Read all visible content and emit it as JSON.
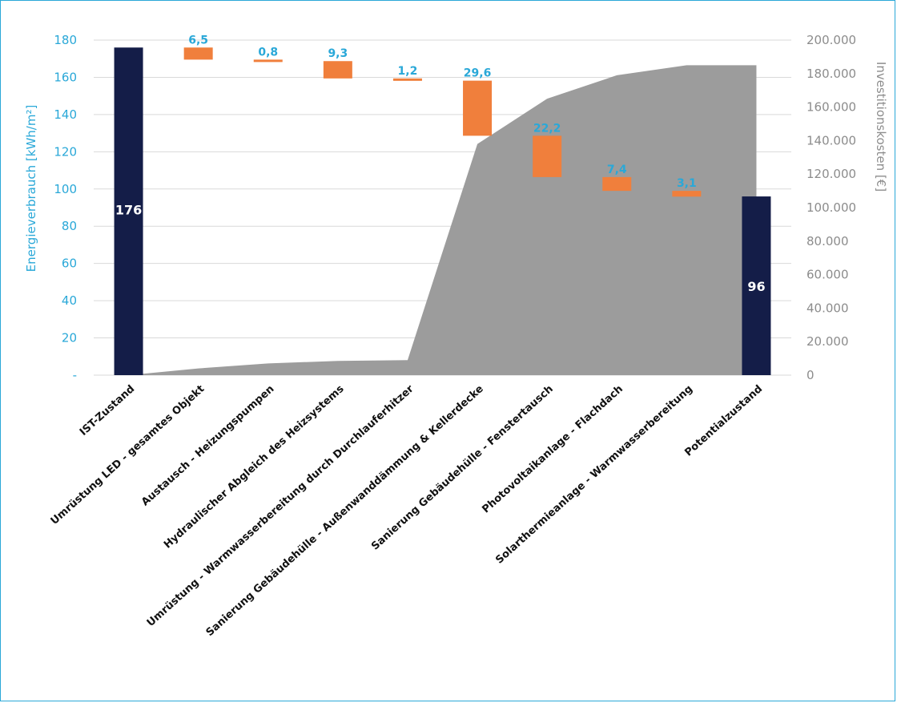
{
  "chart_data": {
    "type": "waterfall",
    "y_left_label": "Energieverbrauch [kWh/m²]",
    "y_right_label": "Investitionskosten [€]",
    "ylim_left": [
      0,
      180
    ],
    "ylim_right": [
      0,
      200000
    ],
    "y_left_ticks": [
      "-",
      "20",
      "40",
      "60",
      "80",
      "100",
      "120",
      "140",
      "160",
      "180"
    ],
    "y_right_ticks": [
      "0",
      "20.000",
      "40.000",
      "60.000",
      "80.000",
      "100.000",
      "120.000",
      "140.000",
      "160.000",
      "180.000",
      "200.000"
    ],
    "grid": true,
    "colors": {
      "total": "#141d48",
      "delta": "#f07f3c",
      "area": "#9c9c9c",
      "accent": "#2aa8d8",
      "frame": "#2aa8d8"
    },
    "categories": [
      "IST-Zustand",
      "Umrüstung LED - gesamtes Objekt",
      "Austausch - Heizungspumpen",
      "Hydraulischer Abgleich des Heizsystems",
      "Umrüstung - Warmwasserbereitung durch Durchlauferhitzer",
      "Sanierung Gebäudehülle - Außenwanddämmung & Kellerdecke",
      "Sanierung Gebäudehülle - Fenstertausch",
      "Photovoltaikanlage - Flachdach",
      "Solarthermieanlage - Warmwasserbereitung",
      "Potentialzustand"
    ],
    "energy_series": [
      {
        "kind": "total",
        "value": 176,
        "label": "176"
      },
      {
        "kind": "delta",
        "value": 6.5,
        "label": "6,5"
      },
      {
        "kind": "delta",
        "value": 0.8,
        "label": "0,8"
      },
      {
        "kind": "delta",
        "value": 9.3,
        "label": "9,3"
      },
      {
        "kind": "delta",
        "value": 1.2,
        "label": "1,2"
      },
      {
        "kind": "delta",
        "value": 29.6,
        "label": "29,6"
      },
      {
        "kind": "delta",
        "value": 22.2,
        "label": "22,2"
      },
      {
        "kind": "delta",
        "value": 7.4,
        "label": "7,4"
      },
      {
        "kind": "delta",
        "value": 3.1,
        "label": "3,1"
      },
      {
        "kind": "total",
        "value": 96,
        "label": "96"
      }
    ],
    "investment_cumulative": [
      0,
      4000,
      7000,
      8500,
      9000,
      138000,
      165000,
      179000,
      185000,
      185000
    ]
  }
}
